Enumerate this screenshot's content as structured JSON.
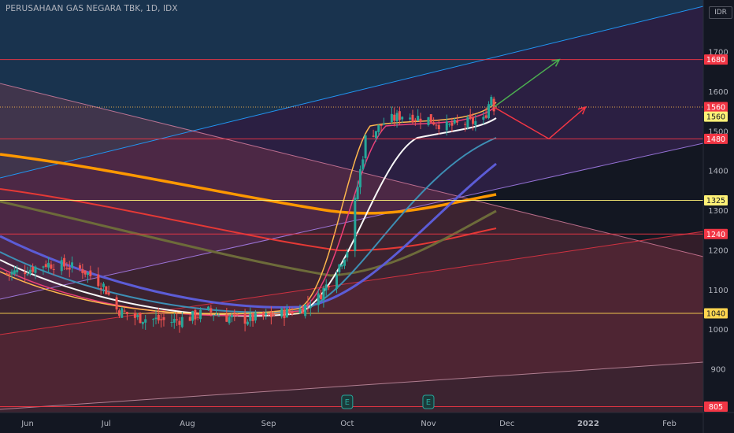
{
  "chart_data": {
    "type": "candlestick",
    "title": "PERUSAHAAN GAS NEGARA TBK, 1D, IDX",
    "currency": "IDR",
    "ylim": [
      790,
      1830
    ],
    "y_ticks": [
      900,
      1000,
      1100,
      1200,
      1300,
      1400,
      1500,
      1600,
      1700
    ],
    "x_ticks": [
      {
        "label": "Jun",
        "date": "2021-06-01"
      },
      {
        "label": "Jul",
        "date": "2021-07-01"
      },
      {
        "label": "Aug",
        "date": "2021-08-01"
      },
      {
        "label": "Sep",
        "date": "2021-09-01"
      },
      {
        "label": "Oct",
        "date": "2021-10-01"
      },
      {
        "label": "Nov",
        "date": "2021-11-01"
      },
      {
        "label": "Dec",
        "date": "2021-12-01"
      },
      {
        "label": "2022",
        "date": "2022-01-01",
        "bold": true
      },
      {
        "label": "Feb",
        "date": "2022-02-01"
      }
    ],
    "horizontal_levels": [
      {
        "label": "1680",
        "value": 1680,
        "color": "#f23645",
        "badge": "#f23645",
        "badge_text": "#ffffff"
      },
      {
        "label": "1560",
        "value": 1560,
        "color": "#ffb74d",
        "badge": "#f23645",
        "badge_text": "#ffffff",
        "dotted": true
      },
      {
        "label": "1560",
        "value": 1536,
        "color": "#fff176",
        "badge": "#fff176",
        "badge_text": "#131722",
        "marker_only": true
      },
      {
        "label": "1480",
        "value": 1480,
        "color": "#f23645",
        "badge": "#f23645",
        "badge_text": "#ffffff"
      },
      {
        "label": "1325",
        "value": 1325,
        "color": "#fff176",
        "badge": "#fff176",
        "badge_text": "#131722"
      },
      {
        "label": "1240",
        "value": 1240,
        "color": "#f23645",
        "badge": "#f23645",
        "badge_text": "#ffffff"
      },
      {
        "label": "1040",
        "value": 1040,
        "color": "#ffd54f",
        "badge": "#ffd54f",
        "badge_text": "#131722"
      },
      {
        "label": "805",
        "value": 805,
        "color": "#f23645",
        "badge": "#f23645",
        "badge_text": "#ffffff"
      }
    ],
    "close_path": [
      [
        "2021-05-24",
        1140
      ],
      [
        "2021-06-01",
        1150
      ],
      [
        "2021-06-08",
        1165
      ],
      [
        "2021-06-15",
        1160
      ],
      [
        "2021-06-22",
        1150
      ],
      [
        "2021-06-30",
        1110
      ],
      [
        "2021-07-05",
        1050
      ],
      [
        "2021-07-12",
        1030
      ],
      [
        "2021-07-19",
        1025
      ],
      [
        "2021-07-26",
        1020
      ],
      [
        "2021-08-02",
        1030
      ],
      [
        "2021-08-09",
        1045
      ],
      [
        "2021-08-16",
        1030
      ],
      [
        "2021-08-23",
        1025
      ],
      [
        "2021-08-30",
        1030
      ],
      [
        "2021-09-06",
        1040
      ],
      [
        "2021-09-13",
        1050
      ],
      [
        "2021-09-20",
        1080
      ],
      [
        "2021-09-27",
        1150
      ],
      [
        "2021-10-01",
        1200
      ],
      [
        "2021-10-05",
        1360
      ],
      [
        "2021-10-08",
        1480
      ],
      [
        "2021-10-15",
        1520
      ],
      [
        "2021-10-22",
        1540
      ],
      [
        "2021-11-01",
        1530
      ],
      [
        "2021-11-08",
        1510
      ],
      [
        "2021-11-15",
        1520
      ],
      [
        "2021-11-22",
        1525
      ],
      [
        "2021-11-25",
        1590
      ],
      [
        "2021-11-26",
        1560
      ]
    ],
    "projections": [
      {
        "color": "#4caf50",
        "points": [
          [
            "2021-11-26",
            1560
          ],
          [
            "2021-12-21",
            1680
          ]
        ]
      },
      {
        "color": "#f23645",
        "points": [
          [
            "2021-11-26",
            1560
          ],
          [
            "2021-12-17",
            1480
          ],
          [
            "2021-12-31",
            1560
          ]
        ]
      }
    ],
    "earnings_markers": [
      {
        "label": "E",
        "date": "2021-10-01"
      },
      {
        "label": "E",
        "date": "2021-11-01"
      }
    ]
  }
}
